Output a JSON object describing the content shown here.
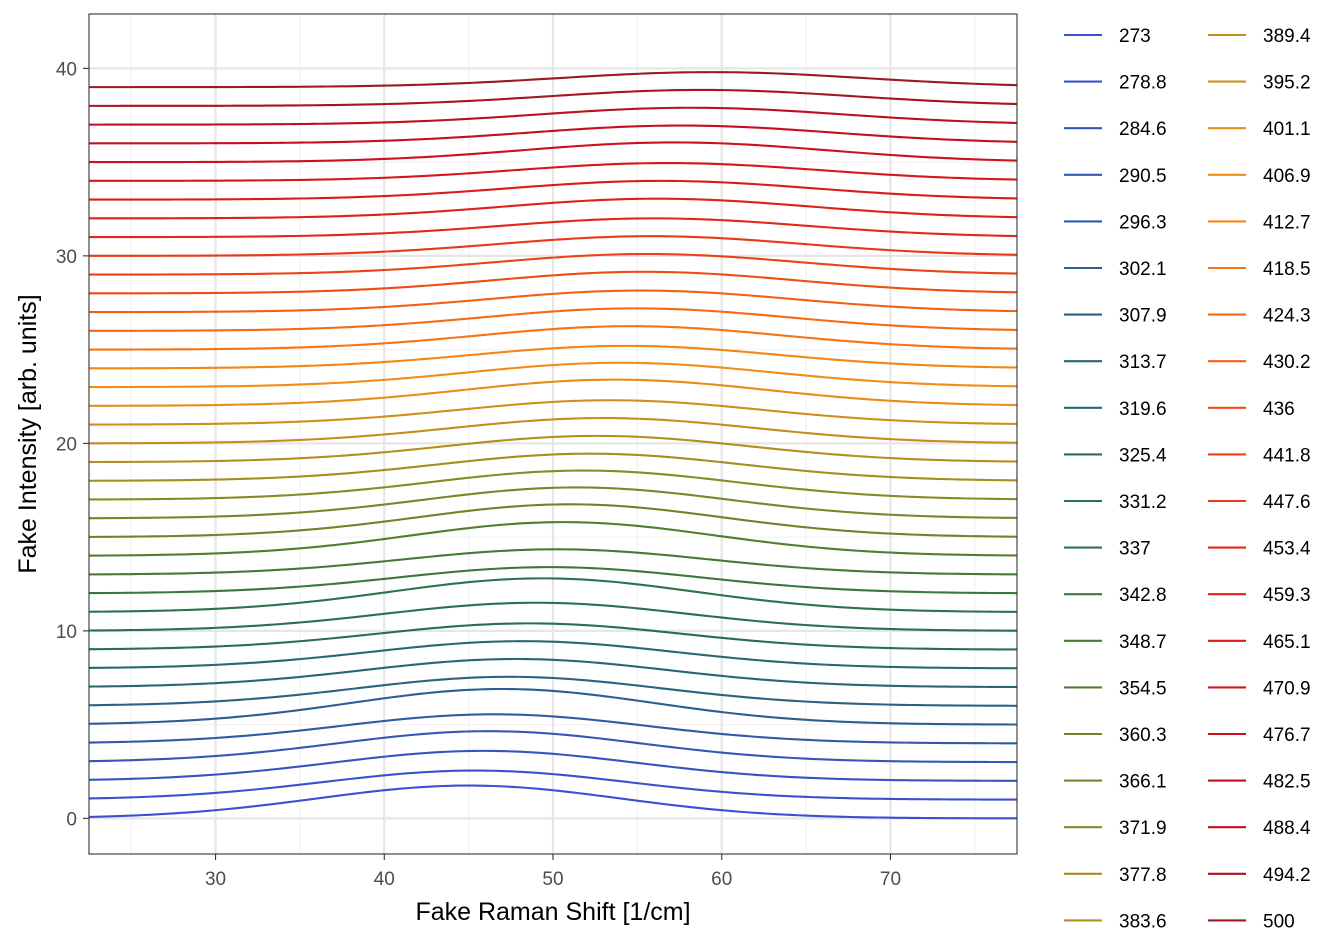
{
  "chart_data": {
    "type": "line",
    "xlabel": "Fake Raman Shift [1/cm]",
    "ylabel": "Fake Intensity [arb. units]",
    "xlim": [
      22.5,
      77.5
    ],
    "ylim": [
      -1.9,
      42.9
    ],
    "x_ticks": [
      "30",
      "40",
      "50",
      "60",
      "70"
    ],
    "y_ticks": [
      "0",
      "10",
      "20",
      "30",
      "40"
    ],
    "x_tick_values": [
      30,
      40,
      50,
      60,
      70
    ],
    "y_tick_values": [
      0,
      10,
      20,
      30,
      40
    ],
    "grid": true,
    "legend_placement": "right",
    "legend_columns": 2,
    "curve_model": "y = offset + A * exp(-((x - center)^2) / (2 * 9^2)); offsets 0..39 step 1",
    "x_start": 22.5,
    "x_end": 77.5,
    "offset_step": 1,
    "sigma": 9,
    "series": [
      {
        "name": "273",
        "color": "#3A4FD6",
        "center": 45.0,
        "amplitude": 1.75
      },
      {
        "name": "278.8",
        "color": "#3851CF",
        "center": 45.4,
        "amplitude": 1.55
      },
      {
        "name": "284.6",
        "color": "#3653C7",
        "center": 45.9,
        "amplitude": 1.6
      },
      {
        "name": "290.5",
        "color": "#3455BE",
        "center": 46.2,
        "amplitude": 1.65
      },
      {
        "name": "296.3",
        "color": "#3257B4",
        "center": 46.5,
        "amplitude": 1.55
      },
      {
        "name": "302.1",
        "color": "#2F5AA8",
        "center": 47.0,
        "amplitude": 1.9
      },
      {
        "name": "307.9",
        "color": "#2D5C9C",
        "center": 47.4,
        "amplitude": 1.55
      },
      {
        "name": "313.7",
        "color": "#2C5F8F",
        "center": 47.8,
        "amplitude": 1.5
      },
      {
        "name": "319.6",
        "color": "#2B6283",
        "center": 48.2,
        "amplitude": 1.45
      },
      {
        "name": "325.4",
        "color": "#2A6577",
        "center": 48.6,
        "amplitude": 1.4
      },
      {
        "name": "331.2",
        "color": "#29686C",
        "center": 49.0,
        "amplitude": 1.5
      },
      {
        "name": "337",
        "color": "#286B62",
        "center": 49.4,
        "amplitude": 1.8
      },
      {
        "name": "342.8",
        "color": "#296D59",
        "center": 49.8,
        "amplitude": 1.4
      },
      {
        "name": "348.7",
        "color": "#2B6F51",
        "center": 50.2,
        "amplitude": 1.35
      },
      {
        "name": "354.5",
        "color": "#2E724A",
        "center": 50.6,
        "amplitude": 1.8
      },
      {
        "name": "360.3",
        "color": "#337442",
        "center": 51.0,
        "amplitude": 1.75
      },
      {
        "name": "366.1",
        "color": "#3B773C",
        "center": 51.4,
        "amplitude": 1.65
      },
      {
        "name": "371.9",
        "color": "#457A36",
        "center": 51.8,
        "amplitude": 1.55
      },
      {
        "name": "377.8",
        "color": "#527D31",
        "center": 52.2,
        "amplitude": 1.45
      },
      {
        "name": "383.6",
        "color": "#60802D",
        "center": 52.6,
        "amplitude": 1.4
      },
      {
        "name": "389.4",
        "color": "#6E8429",
        "center": 53.0,
        "amplitude": 1.35
      },
      {
        "name": "395.2",
        "color": "#7B8726",
        "center": 53.4,
        "amplitude": 1.3
      },
      {
        "name": "401.1",
        "color": "#8A8A24",
        "center": 53.7,
        "amplitude": 1.4
      },
      {
        "name": "406.9",
        "color": "#988C22",
        "center": 54.0,
        "amplitude": 1.3
      },
      {
        "name": "412.7",
        "color": "#A68D20",
        "center": 54.3,
        "amplitude": 1.2
      },
      {
        "name": "418.5",
        "color": "#B48E1E",
        "center": 54.6,
        "amplitude": 1.25
      },
      {
        "name": "424.3",
        "color": "#C28F1C",
        "center": 54.9,
        "amplitude": 1.2
      },
      {
        "name": "430.2",
        "color": "#CF8F1B",
        "center": 55.2,
        "amplitude": 1.15
      },
      {
        "name": "436",
        "color": "#DD8F1A",
        "center": 55.4,
        "amplitude": 1.15
      },
      {
        "name": "441.8",
        "color": "#E88D19",
        "center": 55.6,
        "amplitude": 1.1
      },
      {
        "name": "447.6",
        "color": "#F38B17",
        "center": 55.8,
        "amplitude": 1.05
      },
      {
        "name": "453.4",
        "color": "#F88415",
        "center": 56.0,
        "amplitude": 1.0
      },
      {
        "name": "459.3",
        "color": "#F97C14",
        "center": 56.2,
        "amplitude": 1.05
      },
      {
        "name": "465.1",
        "color": "#F87313",
        "center": 56.4,
        "amplitude": 1.0
      },
      {
        "name": "470.9",
        "color": "#F66A12",
        "center": 56.8,
        "amplitude": 0.95
      },
      {
        "name": "476.7",
        "color": "#F46012",
        "center": 57.2,
        "amplitude": 1.05
      },
      {
        "name": "482.5",
        "color": "#F25612",
        "center": 57.6,
        "amplitude": 0.95
      },
      {
        "name": "488.4",
        "color": "#EF4C13",
        "center": 58.2,
        "amplitude": 0.9
      },
      {
        "name": "494.2",
        "color": "#EC4214",
        "center": 58.8,
        "amplitude": 0.85
      },
      {
        "name": "500",
        "color": "#E93816",
        "center": 59.4,
        "amplitude": 0.8
      }
    ],
    "extra_series_colors": [
      "#E62F17",
      "#E32719",
      "#DF201A",
      "#DB1A1B",
      "#D6161B",
      "#D1131C",
      "#CB111C",
      "#C3101D",
      "#BB111E",
      "#B1131F",
      "#A61620",
      "#9A1A21"
    ]
  }
}
